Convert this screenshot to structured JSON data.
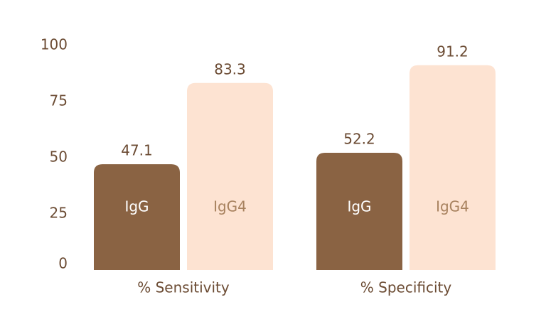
{
  "chart_data": {
    "type": "bar",
    "categories": [
      "% Sensitivity",
      "% Specificity"
    ],
    "series": [
      {
        "name": "IgG",
        "color": "#8a6343",
        "text_color": "#ffffff",
        "values": [
          47.1,
          52.2
        ]
      },
      {
        "name": "IgG4",
        "color": "#fde3d2",
        "text_color": "#a8825f",
        "values": [
          83.3,
          91.2
        ]
      }
    ],
    "ylim": [
      0,
      100
    ],
    "yticks": [
      0,
      25,
      50,
      75,
      100
    ],
    "grid": false
  }
}
